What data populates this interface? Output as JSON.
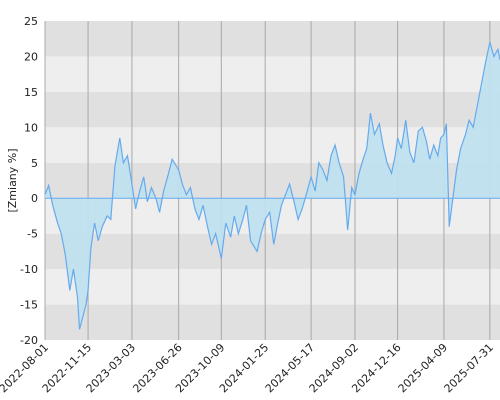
{
  "chart_data": {
    "type": "area",
    "title": "",
    "xlabel": "",
    "ylabel": "[Zmiany %]",
    "ylim": [
      -20,
      25
    ],
    "yticks": [
      -20,
      -15,
      -10,
      -5,
      0,
      5,
      10,
      15,
      20,
      25
    ],
    "ytick_labels": [
      "-20",
      "-15",
      "-10",
      "-5",
      "0",
      "5",
      "10",
      "15",
      "20",
      "25"
    ],
    "xlim": [
      "2022-08-01",
      "2025-08-25"
    ],
    "xticks": [
      "2022-08-01",
      "2022-11-15",
      "2023-03-03",
      "2023-06-26",
      "2023-10-09",
      "2024-01-25",
      "2024-05-17",
      "2024-09-02",
      "2024-12-16",
      "2025-04-09",
      "2025-07-31"
    ],
    "grid": true,
    "band_colors": [
      "#e0e0e0",
      "#eeeeee"
    ],
    "line_color": "#66aaee",
    "fill_color": "#bfe0ee",
    "series": [
      {
        "x": [
          "2022-08-01",
          "2022-08-10",
          "2022-08-20",
          "2022-09-01",
          "2022-09-10",
          "2022-09-20",
          "2022-10-01",
          "2022-10-10",
          "2022-10-20",
          "2022-10-25",
          "2022-11-01",
          "2022-11-10",
          "2022-11-15",
          "2022-11-22",
          "2022-12-01",
          "2022-12-10",
          "2022-12-20",
          "2023-01-01",
          "2023-01-10",
          "2023-01-20",
          "2023-02-01",
          "2023-02-10",
          "2023-02-20",
          "2023-03-03",
          "2023-03-12",
          "2023-03-22",
          "2023-04-01",
          "2023-04-10",
          "2023-04-20",
          "2023-05-01",
          "2023-05-10",
          "2023-05-20",
          "2023-06-01",
          "2023-06-10",
          "2023-06-26",
          "2023-07-05",
          "2023-07-15",
          "2023-07-25",
          "2023-08-05",
          "2023-08-15",
          "2023-08-25",
          "2023-09-05",
          "2023-09-15",
          "2023-09-25",
          "2023-10-09",
          "2023-10-20",
          "2023-11-01",
          "2023-11-10",
          "2023-11-20",
          "2023-12-01",
          "2023-12-10",
          "2023-12-20",
          "2024-01-05",
          "2024-01-15",
          "2024-01-25",
          "2024-02-05",
          "2024-02-15",
          "2024-02-25",
          "2024-03-05",
          "2024-03-15",
          "2024-03-25",
          "2024-04-05",
          "2024-04-15",
          "2024-04-25",
          "2024-05-05",
          "2024-05-17",
          "2024-05-27",
          "2024-06-05",
          "2024-06-15",
          "2024-06-25",
          "2024-07-05",
          "2024-07-15",
          "2024-07-25",
          "2024-08-05",
          "2024-08-15",
          "2024-08-25",
          "2024-09-02",
          "2024-09-12",
          "2024-09-22",
          "2024-10-01",
          "2024-10-10",
          "2024-10-20",
          "2024-11-01",
          "2024-11-10",
          "2024-11-20",
          "2024-12-01",
          "2024-12-10",
          "2024-12-16",
          "2024-12-25",
          "2025-01-05",
          "2025-01-15",
          "2025-01-25",
          "2025-02-05",
          "2025-02-15",
          "2025-02-25",
          "2025-03-05",
          "2025-03-15",
          "2025-03-25",
          "2025-04-01",
          "2025-04-09",
          "2025-04-15",
          "2025-04-22",
          "2025-05-01",
          "2025-05-10",
          "2025-05-20",
          "2025-06-01",
          "2025-06-10",
          "2025-06-20",
          "2025-06-30",
          "2025-07-10",
          "2025-07-20",
          "2025-07-31",
          "2025-08-10",
          "2025-08-20",
          "2025-08-25"
        ],
        "values": [
          0.5,
          1.8,
          -1.0,
          -3.5,
          -5.0,
          -8.0,
          -13.0,
          -10.0,
          -14.0,
          -18.5,
          -17.0,
          -15.0,
          -13.0,
          -7.0,
          -3.5,
          -6.0,
          -4.0,
          -2.5,
          -3.0,
          4.5,
          8.5,
          5.0,
          6.0,
          2.0,
          -1.5,
          1.0,
          3.0,
          -0.5,
          1.5,
          0.0,
          -2.0,
          1.0,
          3.5,
          5.5,
          4.0,
          2.0,
          0.5,
          1.5,
          -1.5,
          -3.0,
          -1.0,
          -4.0,
          -6.5,
          -5.0,
          -8.5,
          -3.5,
          -5.5,
          -2.5,
          -5.0,
          -3.0,
          -1.0,
          -6.0,
          -7.5,
          -5.0,
          -3.0,
          -2.0,
          -6.5,
          -3.5,
          -1.0,
          0.5,
          2.0,
          -0.5,
          -3.0,
          -1.5,
          0.5,
          3.0,
          1.0,
          5.0,
          4.0,
          2.5,
          6.0,
          7.5,
          5.0,
          3.0,
          -4.5,
          1.5,
          0.5,
          3.5,
          5.5,
          7.0,
          12.0,
          9.0,
          10.5,
          7.5,
          5.0,
          3.5,
          6.0,
          8.5,
          7.0,
          11.0,
          6.5,
          5.0,
          9.5,
          10.0,
          8.0,
          5.5,
          7.5,
          6.0,
          8.5,
          9.0,
          10.5,
          -4.0,
          0.0,
          4.0,
          7.0,
          9.0,
          11.0,
          10.0,
          13.0,
          16.0,
          19.0,
          22.0,
          20.0,
          21.0,
          19.5
        ]
      }
    ]
  }
}
